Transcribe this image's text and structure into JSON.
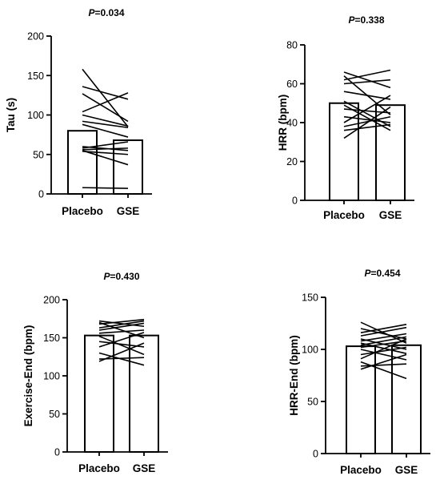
{
  "chart_data": [
    {
      "type": "bar",
      "p_text": "=0.034",
      "p_letter": "P",
      "ylabel": "Tau (s)",
      "categories": [
        "Placebo",
        "GSE"
      ],
      "values": [
        80,
        68
      ],
      "ylim": [
        0,
        200
      ],
      "yticks": [
        0,
        50,
        100,
        150,
        200
      ],
      "paired_lines": [
        [
          158,
          85
        ],
        [
          136,
          120
        ],
        [
          127,
          92
        ],
        [
          104,
          128
        ],
        [
          100,
          86
        ],
        [
          92,
          84
        ],
        [
          88,
          72
        ],
        [
          60,
          55
        ],
        [
          58,
          66
        ],
        [
          56,
          58
        ],
        [
          55,
          37
        ],
        [
          54,
          50
        ],
        [
          8,
          7
        ]
      ]
    },
    {
      "type": "bar",
      "p_text": "=0.338",
      "p_letter": "P",
      "ylabel": "HRR (bpm)",
      "categories": [
        "Placebo",
        "GSE"
      ],
      "values": [
        50,
        49
      ],
      "ylim": [
        0,
        80
      ],
      "yticks": [
        0,
        20,
        40,
        60,
        80
      ],
      "paired_lines": [
        [
          66,
          58
        ],
        [
          64,
          44
        ],
        [
          62,
          67
        ],
        [
          60,
          62
        ],
        [
          56,
          52
        ],
        [
          51,
          38
        ],
        [
          49,
          36
        ],
        [
          47,
          45
        ],
        [
          43,
          40
        ],
        [
          40,
          54
        ],
        [
          38,
          43
        ],
        [
          36,
          39
        ],
        [
          32,
          48
        ]
      ]
    },
    {
      "type": "bar",
      "p_text": "=0.430",
      "p_letter": "P",
      "ylabel": "Exercise-End (bpm)",
      "categories": [
        "Placebo",
        "GSE"
      ],
      "values": [
        153,
        153
      ],
      "ylim": [
        0,
        200
      ],
      "yticks": [
        0,
        50,
        100,
        150,
        200
      ],
      "paired_lines": [
        [
          172,
          165
        ],
        [
          170,
          150
        ],
        [
          168,
          174
        ],
        [
          163,
          172
        ],
        [
          160,
          169
        ],
        [
          156,
          160
        ],
        [
          152,
          128
        ],
        [
          145,
          138
        ],
        [
          138,
          157
        ],
        [
          130,
          114
        ],
        [
          122,
          124
        ],
        [
          119,
          143
        ]
      ]
    },
    {
      "type": "bar",
      "p_text": "=0.454",
      "p_letter": "P",
      "ylabel": "HRR-End (bpm)",
      "categories": [
        "Placebo",
        "GSE"
      ],
      "values": [
        103,
        104
      ],
      "ylim": [
        0,
        150
      ],
      "yticks": [
        0,
        50,
        100,
        150
      ],
      "paired_lines": [
        [
          126,
          106
        ],
        [
          120,
          110
        ],
        [
          116,
          124
        ],
        [
          113,
          121
        ],
        [
          110,
          100
        ],
        [
          108,
          115
        ],
        [
          106,
          96
        ],
        [
          104,
          112
        ],
        [
          102,
          108
        ],
        [
          100,
          90
        ],
        [
          95,
          102
        ],
        [
          91,
          110
        ],
        [
          88,
          72
        ],
        [
          84,
          86
        ],
        [
          81,
          95
        ]
      ]
    }
  ]
}
